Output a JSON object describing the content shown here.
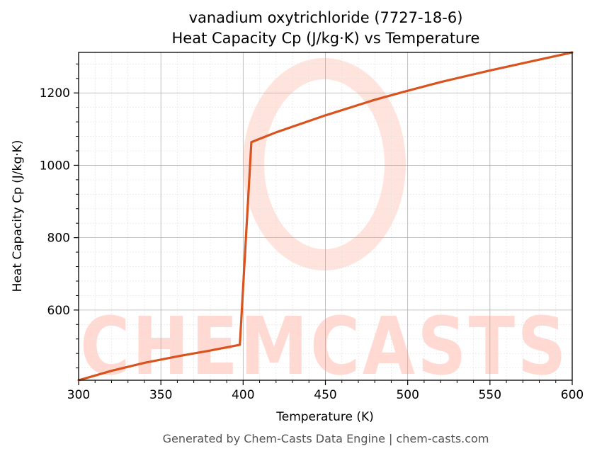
{
  "chart_data": {
    "type": "line",
    "title_line1": "vanadium oxytrichloride (7727-18-6)",
    "title_line2": "Heat Capacity Cp (J/kg·K) vs Temperature",
    "xlabel": "Temperature (K)",
    "ylabel": "Heat Capacity Cp (J/kg·K)",
    "xlim": [
      300,
      600
    ],
    "ylim": [
      406,
      1312
    ],
    "x_ticks": [
      300,
      350,
      400,
      450,
      500,
      550,
      600
    ],
    "y_ticks": [
      600,
      800,
      1000,
      1200
    ],
    "grid": true,
    "series": [
      {
        "x": [
          300,
          320,
          340,
          360,
          380,
          398,
          405,
          420,
          450,
          480,
          500,
          520,
          550,
          580,
          600
        ],
        "values": [
          406,
          432,
          454,
          472,
          488,
          504,
          1064,
          1091,
          1138,
          1181,
          1206,
          1230,
          1262,
          1292,
          1312
        ]
      }
    ],
    "colors": {
      "line": "#d9531e",
      "grid_major": "#b0b0b0",
      "grid_minor": "#e0e0e0"
    }
  },
  "watermark": {
    "text": "CHEMCASTS"
  },
  "footer": "Generated by Chem-Casts Data Engine | chem-casts.com"
}
